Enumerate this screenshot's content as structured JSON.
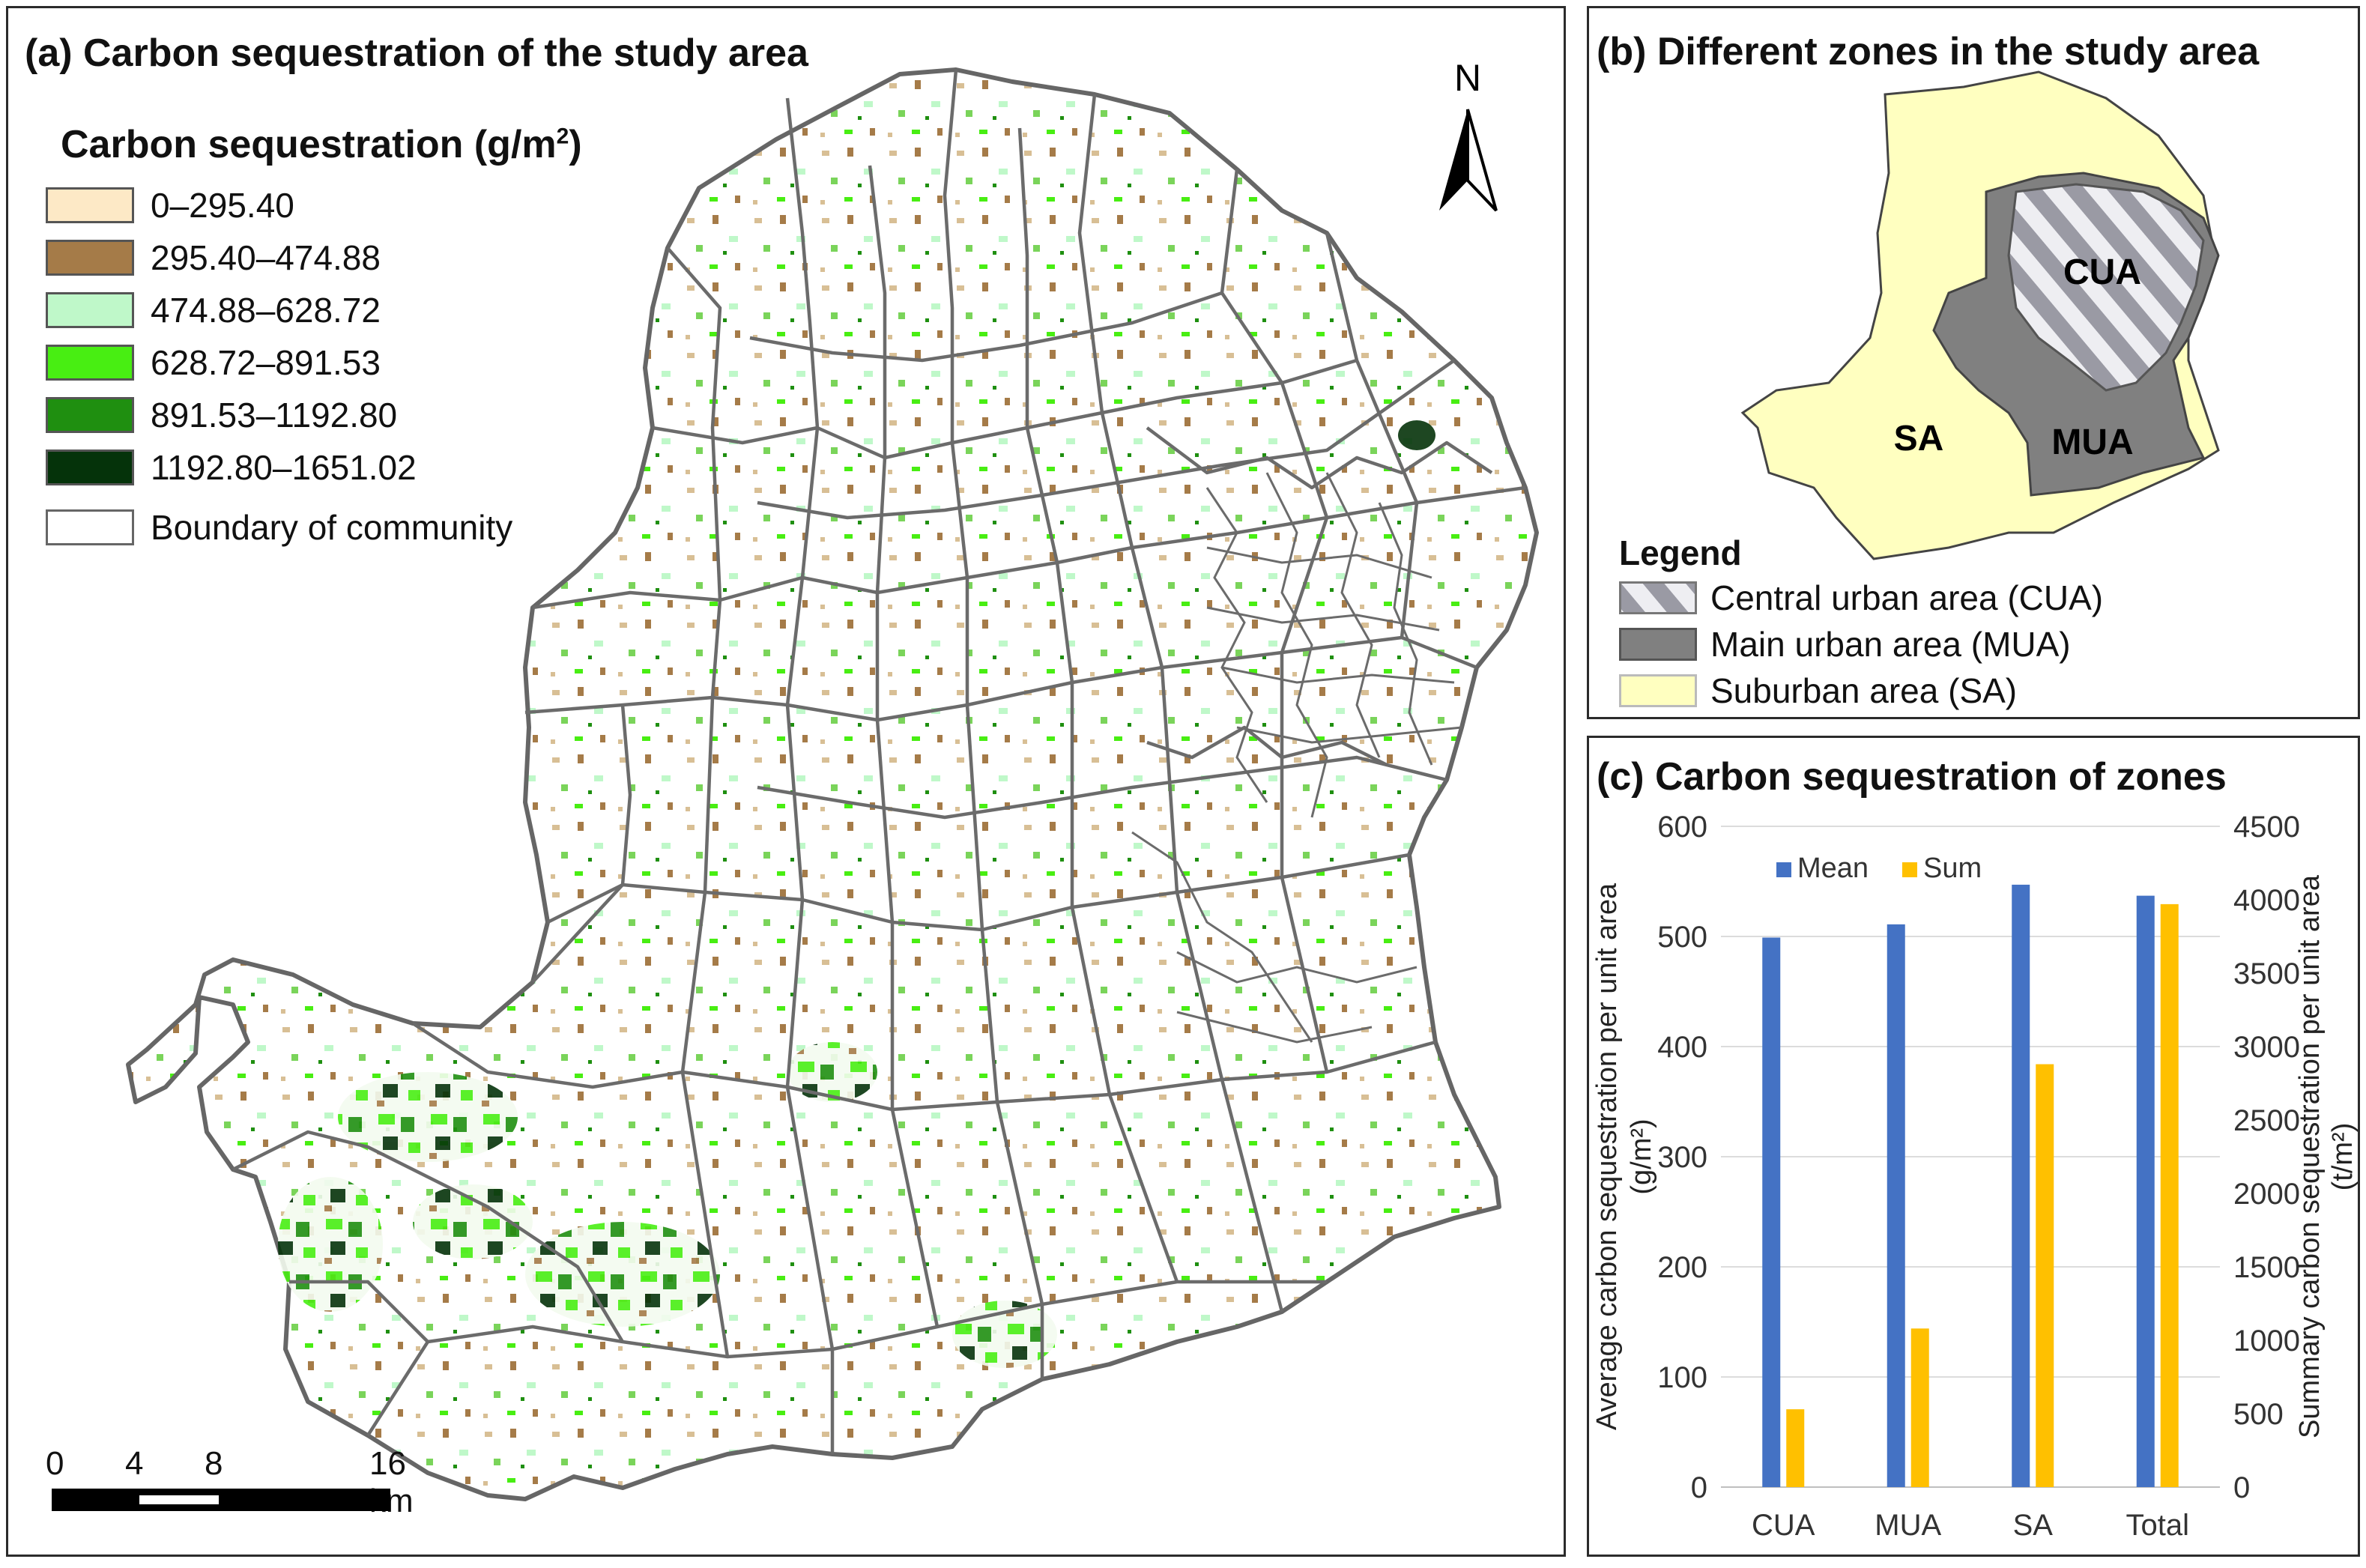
{
  "panel_a": {
    "title": "(a) Carbon sequestration of the study area",
    "legend_title": "Carbon sequestration (g/m",
    "legend_title_sup": "2",
    "legend_title_close": ")",
    "legend": [
      {
        "label": "0–295.40",
        "color": "#fde9c6"
      },
      {
        "label": "295.40–474.88",
        "color": "#a57b48"
      },
      {
        "label": "474.88–628.72",
        "color": "#bff8c9"
      },
      {
        "label": "628.72–891.53",
        "color": "#48ee12"
      },
      {
        "label": "891.53–1192.80",
        "color": "#1f8f10"
      },
      {
        "label": "1192.80–1651.02",
        "color": "#05330a"
      },
      {
        "label": "Boundary of community",
        "color": "#ffffff"
      }
    ],
    "north_label": "N",
    "scale_labels": [
      "0",
      "4",
      "8",
      "16 km"
    ]
  },
  "panel_b": {
    "title": "(b) Different zones in the study area",
    "zone_labels": {
      "cua": "CUA",
      "mua": "MUA",
      "sa": "SA"
    },
    "legend_title": "Legend",
    "legend": [
      {
        "label": "Central urban area (CUA)"
      },
      {
        "label": "Main urban area (MUA)",
        "color": "#808080"
      },
      {
        "label": "Suburban area (SA)",
        "color": "#ffffc0"
      }
    ]
  },
  "chart_data": {
    "type": "bar",
    "title": "(c) Carbon sequestration of zones",
    "categories": [
      "CUA",
      "MUA",
      "SA",
      "Total"
    ],
    "series": [
      {
        "name": "Mean",
        "axis": "left",
        "color": "#4472c4",
        "values": [
          499,
          511,
          547,
          537
        ]
      },
      {
        "name": "Sum",
        "axis": "right",
        "color": "#ffc000",
        "values": [
          530,
          1080,
          2880,
          3970
        ]
      }
    ],
    "ylabel_left_line1": "Average carbon sequestration per unit area",
    "ylabel_left_line2": "(g/m²)",
    "ylabel_right_line1": "Summary carbon sequestration per unit area",
    "ylabel_right_line2": "(t/m²)",
    "ylim_left": [
      0,
      600
    ],
    "ylim_right": [
      0,
      4500
    ],
    "yticks_left": [
      "0",
      "100",
      "200",
      "300",
      "400",
      "500",
      "600"
    ],
    "yticks_right": [
      "0",
      "500",
      "1000",
      "1500",
      "2000",
      "2500",
      "3000",
      "3500",
      "4000",
      "4500"
    ],
    "legend_position": "top-left",
    "grid": true
  }
}
